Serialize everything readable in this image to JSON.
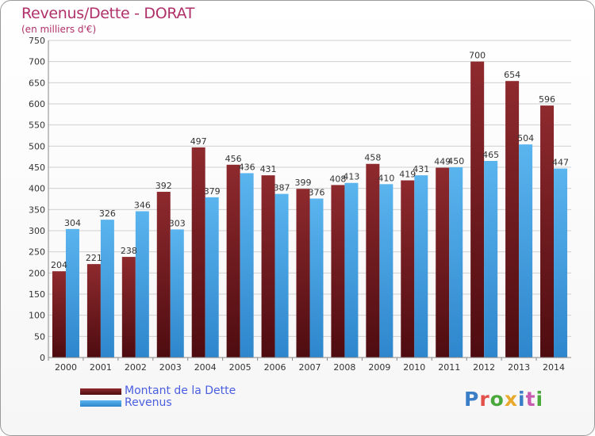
{
  "header": {
    "title": "Revenus/Dette - DORAT",
    "subtitle": "(en milliers d'€)"
  },
  "logo": {
    "text": "Proxiti",
    "colors": [
      "#3a7ec8",
      "#e2504a",
      "#4aa83c",
      "#e8a92c",
      "#3a7ec8",
      "#c85ab0",
      "#4aa83c"
    ]
  },
  "legend": {
    "dette_label": "Montant de la Dette",
    "revenus_label": "Revenus"
  },
  "colors": {
    "dette": "#7a1e22",
    "revenus": "#4aa6e6",
    "grid": "#d0d0d0",
    "axis_text": "#333333",
    "value_text": "#333333"
  },
  "chart_data": {
    "type": "bar",
    "title": "Revenus/Dette - DORAT",
    "subtitle": "(en milliers d'€)",
    "categories": [
      "2000",
      "2001",
      "2002",
      "2003",
      "2004",
      "2005",
      "2006",
      "2007",
      "2008",
      "2009",
      "2010",
      "2011",
      "2012",
      "2013",
      "2014"
    ],
    "series": [
      {
        "name": "Montant de la Dette",
        "values": [
          204,
          221,
          238,
          392,
          497,
          456,
          431,
          399,
          408,
          458,
          419,
          449,
          700,
          654,
          596
        ]
      },
      {
        "name": "Revenus",
        "values": [
          304,
          326,
          346,
          303,
          379,
          436,
          387,
          376,
          413,
          410,
          431,
          450,
          465,
          504,
          447
        ]
      }
    ],
    "ylim": [
      0,
      750
    ],
    "yticks": [
      0,
      50,
      100,
      150,
      200,
      250,
      300,
      350,
      400,
      450,
      500,
      550,
      600,
      650,
      700,
      750
    ],
    "grid": true,
    "legend_position": "bottom-left"
  }
}
